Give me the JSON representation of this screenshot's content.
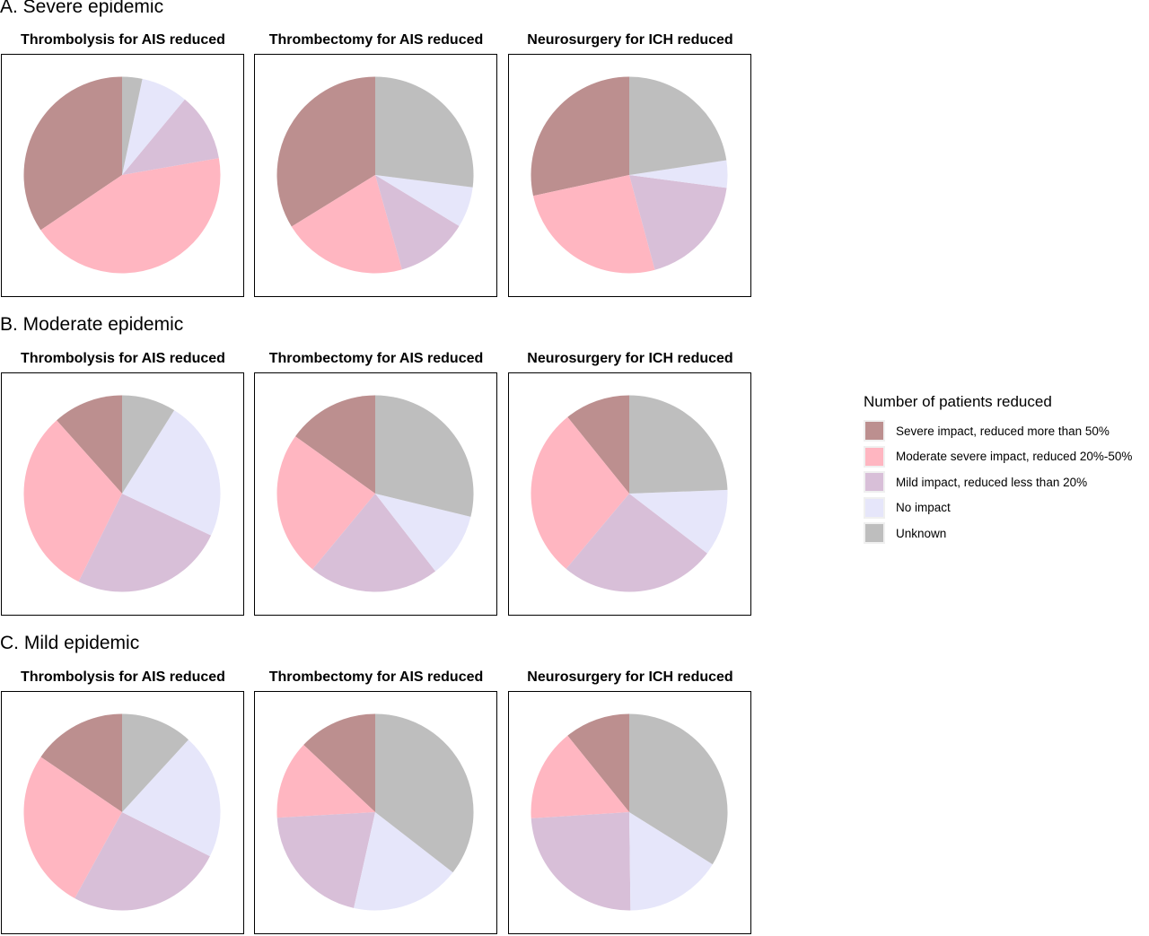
{
  "sections": [
    {
      "title": "A. Severe epidemic"
    },
    {
      "title": "B. Moderate epidemic"
    },
    {
      "title": "C. Mild epidemic"
    }
  ],
  "panel_titles": [
    "Thrombolysis for AIS reduced",
    "Thrombectomy for AIS reduced",
    "Neurosurgery for ICH reduced"
  ],
  "legend": {
    "title": "Number of patients reduced",
    "items": [
      {
        "label": "Severe impact, reduced more than 50%",
        "color": "#BC8F8F"
      },
      {
        "label": "Moderate severe impact, reduced 20%-50%",
        "color": "#FFB6C1"
      },
      {
        "label": "Mild impact, reduced less than 20%",
        "color": "#D8BFD8"
      },
      {
        "label": "No impact",
        "color": "#E6E6FA"
      },
      {
        "label": "Unknown",
        "color": "#BEBEBE"
      }
    ]
  },
  "chart_data": [
    {
      "type": "pie",
      "section": "A. Severe epidemic",
      "title": "Thrombolysis for AIS reduced",
      "categories": [
        "Severe impact, reduced more than 50%",
        "Moderate severe impact, reduced 20%-50%",
        "Mild impact, reduced less than 20%",
        "No impact",
        "Unknown"
      ],
      "values": [
        34.4,
        43.2,
        11.2,
        7.7,
        3.3
      ]
    },
    {
      "type": "pie",
      "section": "A. Severe epidemic",
      "title": "Thrombectomy for AIS reduced",
      "categories": [
        "Severe impact, reduced more than 50%",
        "Moderate severe impact, reduced 20%-50%",
        "Mild impact, reduced less than 20%",
        "No impact",
        "Unknown"
      ],
      "values": [
        33.8,
        20.6,
        11.9,
        6.7,
        27.0
      ]
    },
    {
      "type": "pie",
      "section": "A. Severe epidemic",
      "title": "Neurosurgery for ICH reduced",
      "categories": [
        "Severe impact, reduced more than 50%",
        "Moderate severe impact, reduced 20%-50%",
        "Mild impact, reduced less than 20%",
        "No impact",
        "Unknown"
      ],
      "values": [
        28.4,
        25.8,
        18.7,
        4.5,
        22.6
      ]
    },
    {
      "type": "pie",
      "section": "B. Moderate epidemic",
      "title": "Thrombolysis for AIS reduced",
      "categories": [
        "Severe impact, reduced more than 50%",
        "Moderate severe impact, reduced 20%-50%",
        "Mild impact, reduced less than 20%",
        "No impact",
        "Unknown"
      ],
      "values": [
        11.6,
        31.1,
        25.3,
        23.1,
        8.9
      ]
    },
    {
      "type": "pie",
      "section": "B. Moderate epidemic",
      "title": "Thrombectomy for AIS reduced",
      "categories": [
        "Severe impact, reduced more than 50%",
        "Moderate severe impact, reduced 20%-50%",
        "Mild impact, reduced less than 20%",
        "No impact",
        "Unknown"
      ],
      "values": [
        15.1,
        23.9,
        21.5,
        10.7,
        28.8
      ]
    },
    {
      "type": "pie",
      "section": "B. Moderate epidemic",
      "title": "Neurosurgery for ICH reduced",
      "categories": [
        "Severe impact, reduced more than 50%",
        "Moderate severe impact, reduced 20%-50%",
        "Mild impact, reduced less than 20%",
        "No impact",
        "Unknown"
      ],
      "values": [
        10.8,
        28.1,
        25.7,
        11.0,
        24.4
      ]
    },
    {
      "type": "pie",
      "section": "C. Mild epidemic",
      "title": "Thrombolysis for AIS reduced",
      "categories": [
        "Severe impact, reduced more than 50%",
        "Moderate severe impact, reduced 20%-50%",
        "Mild impact, reduced less than 20%",
        "No impact",
        "Unknown"
      ],
      "values": [
        15.5,
        26.5,
        25.6,
        20.6,
        11.8
      ]
    },
    {
      "type": "pie",
      "section": "C. Mild epidemic",
      "title": "Thrombectomy for AIS reduced",
      "categories": [
        "Severe impact, reduced more than 50%",
        "Moderate severe impact, reduced 20%-50%",
        "Mild impact, reduced less than 20%",
        "No impact",
        "Unknown"
      ],
      "values": [
        13.0,
        12.9,
        20.6,
        18.0,
        35.5
      ]
    },
    {
      "type": "pie",
      "section": "C. Mild epidemic",
      "title": "Neurosurgery for ICH reduced",
      "categories": [
        "Severe impact, reduced more than 50%",
        "Moderate severe impact, reduced 20%-50%",
        "Mild impact, reduced less than 20%",
        "No impact",
        "Unknown"
      ],
      "values": [
        10.8,
        15.2,
        24.2,
        15.9,
        33.9
      ]
    }
  ]
}
